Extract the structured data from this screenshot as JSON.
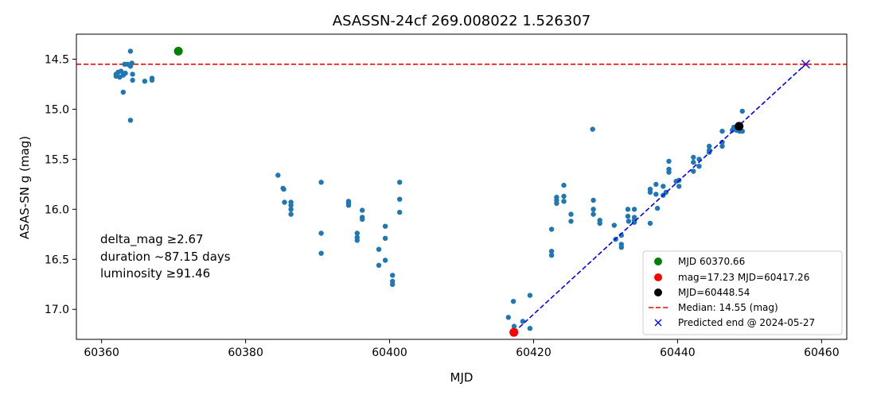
{
  "chart_data": {
    "type": "scatter",
    "title": "ASASSN-24cf  269.008022 1.526307",
    "xlabel": "MJD",
    "ylabel": "ASAS-SN g (mag)",
    "xlim": [
      60356.5,
      60463.5
    ],
    "ylim": [
      17.3,
      14.25
    ],
    "y_inverted": true,
    "grid": false,
    "legend_position": "lower-right",
    "xticks": [
      60360,
      60380,
      60400,
      60420,
      60440,
      60460
    ],
    "yticks": [
      14.5,
      15.0,
      15.5,
      16.0,
      16.5,
      17.0
    ],
    "xtick_labels": [
      "60360",
      "60380",
      "60400",
      "60420",
      "60440",
      "60460"
    ],
    "ytick_labels": [
      "14.5",
      "15.0",
      "15.5",
      "16.0",
      "16.5",
      "17.0"
    ],
    "annotation_lines": [
      "delta_mag ≥2.67",
      "duration ~87.15 days",
      "luminosity ≥91.46"
    ],
    "colors": {
      "observations": "#1f77b4",
      "peak": "#008000",
      "minimum": "#ff0000",
      "latest": "#000000",
      "median": "#ff0000",
      "prediction": "#0000ff"
    },
    "observations": [
      [
        60362.0,
        14.65
      ],
      [
        60362.0,
        14.67
      ],
      [
        60362.3,
        14.63
      ],
      [
        60362.5,
        14.68
      ],
      [
        60362.7,
        14.62
      ],
      [
        60363.0,
        14.66
      ],
      [
        60363.2,
        14.55
      ],
      [
        60363.3,
        14.64
      ],
      [
        60363.0,
        14.83
      ],
      [
        60363.6,
        14.55
      ],
      [
        60364.0,
        14.57
      ],
      [
        60364.0,
        14.42
      ],
      [
        60364.2,
        14.54
      ],
      [
        60364.3,
        14.65
      ],
      [
        60364.3,
        14.71
      ],
      [
        60364.0,
        15.11
      ],
      [
        60366.0,
        14.72
      ],
      [
        60367.0,
        14.69
      ],
      [
        60367.0,
        14.71
      ],
      [
        60384.5,
        15.66
      ],
      [
        60385.2,
        15.79
      ],
      [
        60385.3,
        15.8
      ],
      [
        60385.4,
        15.93
      ],
      [
        60386.3,
        15.96
      ],
      [
        60386.3,
        15.93
      ],
      [
        60386.3,
        16.0
      ],
      [
        60386.3,
        16.05
      ],
      [
        60390.5,
        15.73
      ],
      [
        60390.5,
        16.24
      ],
      [
        60390.5,
        16.44
      ],
      [
        60394.3,
        15.92
      ],
      [
        60394.3,
        15.94
      ],
      [
        60394.3,
        15.96
      ],
      [
        60395.5,
        16.24
      ],
      [
        60395.5,
        16.28
      ],
      [
        60395.5,
        16.31
      ],
      [
        60396.2,
        16.01
      ],
      [
        60396.2,
        16.08
      ],
      [
        60396.2,
        16.1
      ],
      [
        60398.5,
        16.4
      ],
      [
        60398.5,
        16.56
      ],
      [
        60399.4,
        16.17
      ],
      [
        60399.4,
        16.29
      ],
      [
        60399.4,
        16.51
      ],
      [
        60400.4,
        16.66
      ],
      [
        60400.4,
        16.72
      ],
      [
        60400.4,
        16.75
      ],
      [
        60401.4,
        15.73
      ],
      [
        60401.4,
        15.9
      ],
      [
        60401.4,
        16.03
      ],
      [
        60416.5,
        17.08
      ],
      [
        60417.2,
        16.92
      ],
      [
        60417.3,
        17.17
      ],
      [
        60418.5,
        17.12
      ],
      [
        60419.5,
        16.86
      ],
      [
        60419.5,
        17.19
      ],
      [
        60422.5,
        16.2
      ],
      [
        60422.5,
        16.42
      ],
      [
        60422.5,
        16.46
      ],
      [
        60423.2,
        15.88
      ],
      [
        60423.2,
        15.91
      ],
      [
        60423.2,
        15.94
      ],
      [
        60424.2,
        15.76
      ],
      [
        60424.2,
        15.87
      ],
      [
        60424.2,
        15.92
      ],
      [
        60425.2,
        16.05
      ],
      [
        60425.2,
        16.12
      ],
      [
        60428.2,
        15.2
      ],
      [
        60428.3,
        15.91
      ],
      [
        60428.3,
        16.0
      ],
      [
        60428.3,
        16.05
      ],
      [
        60429.2,
        16.11
      ],
      [
        60429.2,
        16.14
      ],
      [
        60431.2,
        16.16
      ],
      [
        60431.4,
        16.3
      ],
      [
        60432.2,
        16.26
      ],
      [
        60432.2,
        16.35
      ],
      [
        60432.2,
        16.38
      ],
      [
        60433.1,
        16.0
      ],
      [
        60433.1,
        16.07
      ],
      [
        60433.2,
        16.12
      ],
      [
        60434.0,
        16.0
      ],
      [
        60434.0,
        16.08
      ],
      [
        60434.0,
        16.11
      ],
      [
        60434.0,
        16.13
      ],
      [
        60436.2,
        15.8
      ],
      [
        60436.2,
        15.83
      ],
      [
        60436.2,
        16.14
      ],
      [
        60437.0,
        15.75
      ],
      [
        60437.0,
        15.85
      ],
      [
        60437.2,
        15.99
      ],
      [
        60438.0,
        15.77
      ],
      [
        60438.0,
        15.86
      ],
      [
        60438.4,
        15.83
      ],
      [
        60438.8,
        15.52
      ],
      [
        60438.8,
        15.6
      ],
      [
        60438.8,
        15.63
      ],
      [
        60439.8,
        15.72
      ],
      [
        60440.2,
        15.71
      ],
      [
        60440.2,
        15.77
      ],
      [
        60442.2,
        15.48
      ],
      [
        60442.2,
        15.53
      ],
      [
        60442.2,
        15.62
      ],
      [
        60443.0,
        15.5
      ],
      [
        60443.0,
        15.57
      ],
      [
        60444.4,
        15.37
      ],
      [
        60444.4,
        15.41
      ],
      [
        60444.4,
        15.43
      ],
      [
        60446.2,
        15.22
      ],
      [
        60446.2,
        15.33
      ],
      [
        60446.2,
        15.37
      ],
      [
        60447.6,
        15.21
      ],
      [
        60447.8,
        15.18
      ],
      [
        60448.0,
        15.2
      ],
      [
        60448.2,
        15.21
      ],
      [
        60448.6,
        15.22
      ],
      [
        60449.0,
        15.02
      ],
      [
        60449.0,
        15.22
      ]
    ],
    "median": {
      "label": "Median: 14.55 (mag)",
      "value": 14.55
    },
    "highlights": [
      {
        "label": "MJD 60370.66",
        "x": 60370.66,
        "y": 14.42,
        "color": "#008000"
      },
      {
        "label": "mag=17.23 MJD=60417.26",
        "x": 60417.26,
        "y": 17.23,
        "color": "#ff0000"
      },
      {
        "label": "MJD=60448.54",
        "x": 60448.54,
        "y": 15.17,
        "color": "#000000"
      }
    ],
    "prediction": {
      "label": "Predicted end @ 2024-05-27",
      "start": [
        60417.26,
        17.23
      ],
      "end": [
        60457.8,
        14.55
      ]
    },
    "legend_entries": [
      "MJD 60370.66",
      "mag=17.23 MJD=60417.26",
      "MJD=60448.54",
      "Median: 14.55 (mag)",
      "Predicted end @ 2024-05-27"
    ]
  }
}
